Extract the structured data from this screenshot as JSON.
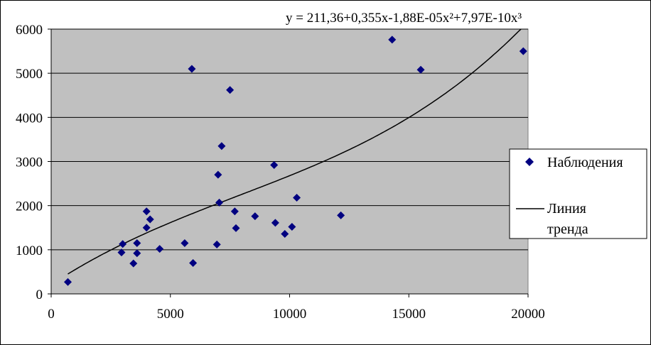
{
  "chart_data": {
    "type": "scatter",
    "equation": "y = 211,36+0,355x-1,88E-05x²+7,97E-10x³",
    "xlabel": "",
    "ylabel": "",
    "xlim": [
      0,
      20000
    ],
    "ylim": [
      0,
      6000
    ],
    "x_ticks": [
      "0",
      "5000",
      "10000",
      "15000",
      "20000"
    ],
    "y_ticks": [
      "0",
      "1000",
      "2000",
      "3000",
      "4000",
      "5000",
      "6000"
    ],
    "grid": "horizontal",
    "legend_position": "right",
    "series": [
      {
        "name": "Наблюдения",
        "kind": "scatter",
        "color": "#000080",
        "points": [
          [
            700,
            270
          ],
          [
            2950,
            940
          ],
          [
            3000,
            1130
          ],
          [
            3450,
            690
          ],
          [
            3600,
            1150
          ],
          [
            3600,
            920
          ],
          [
            4000,
            1870
          ],
          [
            4000,
            1500
          ],
          [
            4150,
            1690
          ],
          [
            4550,
            1020
          ],
          [
            5600,
            1150
          ],
          [
            5900,
            5100
          ],
          [
            5950,
            700
          ],
          [
            6950,
            1120
          ],
          [
            7000,
            2700
          ],
          [
            7050,
            2070
          ],
          [
            7150,
            3350
          ],
          [
            7500,
            4620
          ],
          [
            7700,
            1870
          ],
          [
            7750,
            1490
          ],
          [
            8550,
            1760
          ],
          [
            9350,
            2920
          ],
          [
            9400,
            1610
          ],
          [
            9800,
            1360
          ],
          [
            10100,
            1520
          ],
          [
            10300,
            2180
          ],
          [
            12150,
            1780
          ],
          [
            14300,
            5760
          ],
          [
            15500,
            5080
          ],
          [
            19800,
            5500
          ]
        ]
      },
      {
        "name": "Линия тренда",
        "kind": "line",
        "color": "#000000",
        "coefficients": [
          211.36,
          0.355,
          -1.88e-05,
          7.97e-10
        ],
        "x_range": [
          700,
          19800
        ]
      }
    ]
  }
}
